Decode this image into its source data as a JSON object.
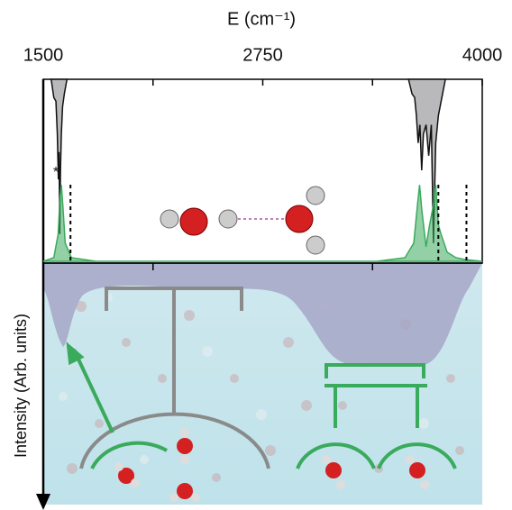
{
  "chart_data": {
    "type": "spectrum",
    "x_label": "E (cm⁻¹)",
    "y_label": "Intensity (Arb. units)",
    "annotation": "*",
    "xlim": [
      1500,
      4000
    ],
    "xticks": [
      1500,
      2750,
      4000
    ],
    "xminorticks": [
      2125,
      3375
    ],
    "ylim": [
      0,
      1
    ],
    "dashed_x": [
      1655,
      3750,
      3910
    ],
    "series": [
      {
        "color": "#b9b9bb",
        "inverted": true,
        "x": [
          1545,
          1560,
          1572,
          1580,
          1586,
          1590,
          1594,
          1598,
          1603,
          1610,
          1620,
          1635,
          null,
          3580,
          3600,
          3615,
          3625,
          3635,
          3645,
          3655,
          3665,
          3680,
          3695,
          3710,
          3722,
          3735,
          3750,
          3770,
          3790
        ],
        "values": [
          0,
          0.1,
          0.12,
          0.3,
          0.55,
          0.4,
          0.85,
          0.5,
          0.3,
          0.15,
          0.08,
          0,
          null,
          0,
          0.08,
          0.1,
          0.2,
          0.35,
          0.25,
          0.5,
          0.3,
          0.25,
          0.42,
          0.25,
          0.9,
          0.35,
          0.2,
          0.1,
          0
        ]
      },
      {
        "color": "#3aaa5c",
        "inverted": false,
        "x": [
          1500,
          1560,
          1585,
          1595,
          1603,
          1612,
          1625,
          1660,
          1800,
          3400,
          3560,
          3610,
          3630,
          3643,
          3656,
          3680,
          3700,
          3720,
          3735,
          3750,
          3765,
          3800,
          3850,
          3900,
          4000
        ],
        "values": [
          0,
          0.02,
          0.15,
          0.35,
          0.42,
          0.3,
          0.1,
          0.02,
          0,
          0,
          0.02,
          0.1,
          0.3,
          0.42,
          0.28,
          0.08,
          0.2,
          0.3,
          0.42,
          0.2,
          0.15,
          0.05,
          0.02,
          0.01,
          0
        ]
      }
    ]
  }
}
